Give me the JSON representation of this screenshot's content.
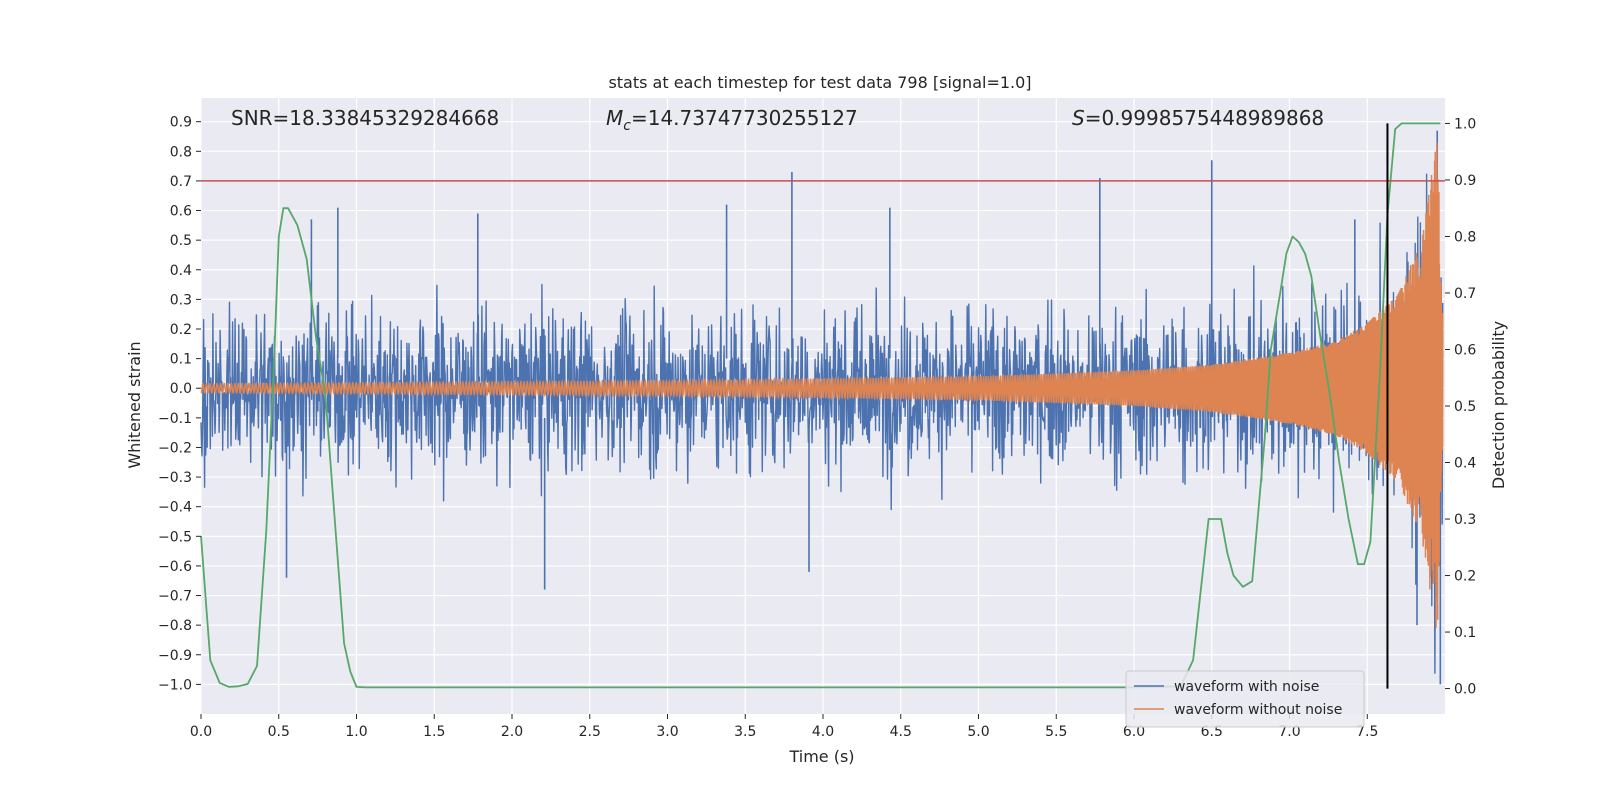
{
  "chart_data": {
    "type": "line",
    "title": "stats at each timestep for test data 798 [signal=1.0]",
    "xlabel": "Time (s)",
    "ylabel": "Whitened strain",
    "ylabel_right": "Detection probability",
    "xlim": [
      0.0,
      8.0
    ],
    "ylim": [
      -1.1,
      0.98
    ],
    "ylim_right": [
      -0.045,
      1.045
    ],
    "x_ticks": [
      0.0,
      0.5,
      1.0,
      1.5,
      2.0,
      2.5,
      3.0,
      3.5,
      4.0,
      4.5,
      5.0,
      5.5,
      6.0,
      6.5,
      7.0,
      7.5
    ],
    "x_tick_labels": [
      "0.0",
      "0.5",
      "1.0",
      "1.5",
      "2.0",
      "2.5",
      "3.0",
      "3.5",
      "4.0",
      "4.5",
      "5.0",
      "5.5",
      "6.0",
      "6.5",
      "7.0",
      "7.5"
    ],
    "y_ticks": [
      0.9,
      0.8,
      0.7,
      0.6,
      0.5,
      0.4,
      0.3,
      0.2,
      0.1,
      0.0,
      -0.1,
      -0.2,
      -0.3,
      -0.4,
      -0.5,
      -0.6,
      -0.7,
      -0.8,
      -0.9,
      -1.0
    ],
    "y_tick_labels": [
      "0.9",
      "0.8",
      "0.7",
      "0.6",
      "0.5",
      "0.4",
      "0.3",
      "0.2",
      "0.1",
      "0.0",
      "−0.1",
      "−0.2",
      "−0.3",
      "−0.4",
      "−0.5",
      "−0.6",
      "−0.7",
      "−0.8",
      "−0.9",
      "−1.0"
    ],
    "y_right_ticks": [
      1.0,
      0.9,
      0.8,
      0.7,
      0.6,
      0.5,
      0.4,
      0.3,
      0.2,
      0.1,
      0.0
    ],
    "y_right_tick_labels": [
      "1.0",
      "0.9",
      "0.8",
      "0.7",
      "0.6",
      "0.5",
      "0.4",
      "0.3",
      "0.2",
      "0.1",
      "0.0"
    ],
    "right_axis_grid_values": [
      0.6,
      0.5
    ],
    "threshold_line": {
      "y": 0.7,
      "color": "#c44e52"
    },
    "vertical_marker": {
      "x": 7.63,
      "y_right_range": [
        0.0,
        1.0
      ],
      "color": "#000000"
    },
    "annotations": {
      "snr": "SNR=18.33845329284668",
      "mc_symbol": "M",
      "mc_sub": "c",
      "mc_value": "=14.73747730255127",
      "s_symbol": "S",
      "s_value": "=0.9998575448989868"
    },
    "series": [
      {
        "name": "waveform with noise",
        "color": "#4c72b0",
        "description": "whitened strain, noise with typical amplitude about 0.25 and peaks",
        "peaks": [
          [
            0.55,
            -0.64
          ],
          [
            0.71,
            0.57
          ],
          [
            0.88,
            0.61
          ],
          [
            1.78,
            0.59
          ],
          [
            2.21,
            -0.68
          ],
          [
            3.38,
            0.62
          ],
          [
            3.8,
            0.73
          ],
          [
            3.91,
            -0.62
          ],
          [
            4.43,
            0.61
          ],
          [
            5.78,
            0.71
          ],
          [
            6.5,
            0.77
          ],
          [
            7.42,
            0.57
          ],
          [
            7.82,
            -0.8
          ],
          [
            7.95,
            0.87
          ],
          [
            7.97,
            -1.0
          ]
        ]
      },
      {
        "name": "waveform without noise",
        "color": "#dd8452",
        "description": "chirp signal, amplitude grows from about 0.02 to about 0.85 at 7.97 s",
        "envelope": [
          [
            0.0,
            0.015
          ],
          [
            3.0,
            0.025
          ],
          [
            5.0,
            0.04
          ],
          [
            6.0,
            0.06
          ],
          [
            6.5,
            0.08
          ],
          [
            7.0,
            0.12
          ],
          [
            7.3,
            0.16
          ],
          [
            7.5,
            0.22
          ],
          [
            7.7,
            0.32
          ],
          [
            7.85,
            0.5
          ],
          [
            7.95,
            0.85
          ],
          [
            8.0,
            0.0
          ]
        ]
      },
      {
        "name": "detection probability",
        "color": "#55a868",
        "axis": "right",
        "x": [
          0.0,
          0.06,
          0.12,
          0.18,
          0.24,
          0.3,
          0.36,
          0.42,
          0.47,
          0.5,
          0.53,
          0.56,
          0.62,
          0.68,
          0.74,
          0.8,
          0.86,
          0.92,
          0.96,
          1.0,
          1.06,
          2.0,
          3.0,
          4.0,
          5.0,
          6.0,
          6.3,
          6.38,
          6.44,
          6.48,
          6.52,
          6.56,
          6.6,
          6.64,
          6.7,
          6.76,
          6.84,
          6.88,
          6.94,
          6.98,
          7.02,
          7.06,
          7.1,
          7.14,
          7.2,
          7.26,
          7.32,
          7.38,
          7.44,
          7.48,
          7.52,
          7.58,
          7.63,
          7.68,
          7.72,
          7.8,
          7.85,
          7.88,
          7.91,
          7.94,
          7.97
        ],
        "values": [
          0.27,
          0.05,
          0.01,
          0.003,
          0.004,
          0.008,
          0.04,
          0.28,
          0.58,
          0.8,
          0.85,
          0.85,
          0.82,
          0.76,
          0.62,
          0.52,
          0.3,
          0.08,
          0.03,
          0.003,
          0.002,
          0.002,
          0.002,
          0.002,
          0.002,
          0.002,
          0.004,
          0.05,
          0.2,
          0.3,
          0.3,
          0.3,
          0.24,
          0.2,
          0.18,
          0.19,
          0.44,
          0.6,
          0.7,
          0.77,
          0.8,
          0.79,
          0.77,
          0.73,
          0.62,
          0.52,
          0.4,
          0.3,
          0.22,
          0.22,
          0.26,
          0.55,
          0.84,
          0.99,
          1.0,
          1.0,
          1.0,
          1.0,
          1.0,
          1.0,
          1.0
        ]
      }
    ],
    "legend": [
      "waveform with noise",
      "waveform without noise"
    ],
    "legend_position": "bottom-right",
    "grid": true
  }
}
